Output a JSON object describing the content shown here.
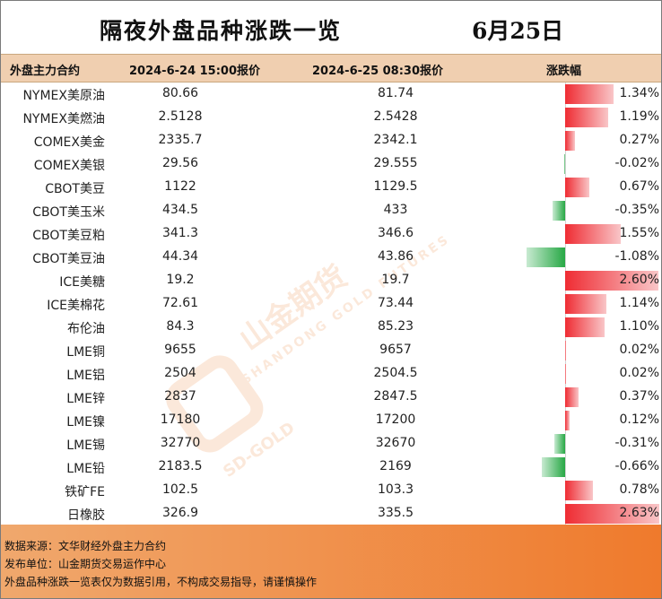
{
  "title": "隔夜外盘品种涨跌一览",
  "date": "6月25日",
  "headers": {
    "name": "外盘主力合约",
    "col1": "2024-6-24 15:00报价",
    "col2": "2024-6-25 08:30报价",
    "change": "涨跌幅"
  },
  "colors": {
    "up": "#ef2c33",
    "down": "#27a845",
    "header_bg": "#f0cfb0",
    "footer": "#ef7a2c"
  },
  "watermark": {
    "brand": "山金期货",
    "sub": "SHANDONG GOLD FUTURES",
    "mark": "SD-GOLD"
  },
  "chart_data": {
    "type": "table",
    "rows": [
      {
        "name": "NYMEX美原油",
        "v1": "80.66",
        "v2": "81.74",
        "pct": "1.34%",
        "value": 1.34
      },
      {
        "name": "NYMEX美燃油",
        "v1": "2.5128",
        "v2": "2.5428",
        "pct": "1.19%",
        "value": 1.19
      },
      {
        "name": "COMEX美金",
        "v1": "2335.7",
        "v2": "2342.1",
        "pct": "0.27%",
        "value": 0.27
      },
      {
        "name": "COMEX美银",
        "v1": "29.56",
        "v2": "29.555",
        "pct": "-0.02%",
        "value": -0.02
      },
      {
        "name": "CBOT美豆",
        "v1": "1122",
        "v2": "1129.5",
        "pct": "0.67%",
        "value": 0.67
      },
      {
        "name": "CBOT美玉米",
        "v1": "434.5",
        "v2": "433",
        "pct": "-0.35%",
        "value": -0.35
      },
      {
        "name": "CBOT美豆粕",
        "v1": "341.3",
        "v2": "346.6",
        "pct": "1.55%",
        "value": 1.55
      },
      {
        "name": "CBOT美豆油",
        "v1": "44.34",
        "v2": "43.86",
        "pct": "-1.08%",
        "value": -1.08
      },
      {
        "name": "ICE美糖",
        "v1": "19.2",
        "v2": "19.7",
        "pct": "2.60%",
        "value": 2.6
      },
      {
        "name": "ICE美棉花",
        "v1": "72.61",
        "v2": "73.44",
        "pct": "1.14%",
        "value": 1.14
      },
      {
        "name": "布伦油",
        "v1": "84.3",
        "v2": "85.23",
        "pct": "1.10%",
        "value": 1.1
      },
      {
        "name": "LME铜",
        "v1": "9655",
        "v2": "9657",
        "pct": "0.02%",
        "value": 0.02
      },
      {
        "name": "LME铝",
        "v1": "2504",
        "v2": "2504.5",
        "pct": "0.02%",
        "value": 0.02
      },
      {
        "name": "LME锌",
        "v1": "2837",
        "v2": "2847.5",
        "pct": "0.37%",
        "value": 0.37
      },
      {
        "name": "LME镍",
        "v1": "17180",
        "v2": "17200",
        "pct": "0.12%",
        "value": 0.12
      },
      {
        "name": "LME锡",
        "v1": "32770",
        "v2": "32670",
        "pct": "-0.31%",
        "value": -0.31
      },
      {
        "name": "LME铅",
        "v1": "2183.5",
        "v2": "2169",
        "pct": "-0.66%",
        "value": -0.66
      },
      {
        "name": "铁矿FE",
        "v1": "102.5",
        "v2": "103.3",
        "pct": "0.78%",
        "value": 0.78
      },
      {
        "name": "日橡胶",
        "v1": "326.9",
        "v2": "335.5",
        "pct": "2.63%",
        "value": 2.63
      }
    ]
  },
  "footer": {
    "source": "数据来源：文华财经外盘主力合约",
    "publisher": "发布单位：山金期货交易运作中心",
    "disclaimer": "外盘品种涨跌一览表仅为数据引用，不构成交易指导，请谨慎操作"
  }
}
